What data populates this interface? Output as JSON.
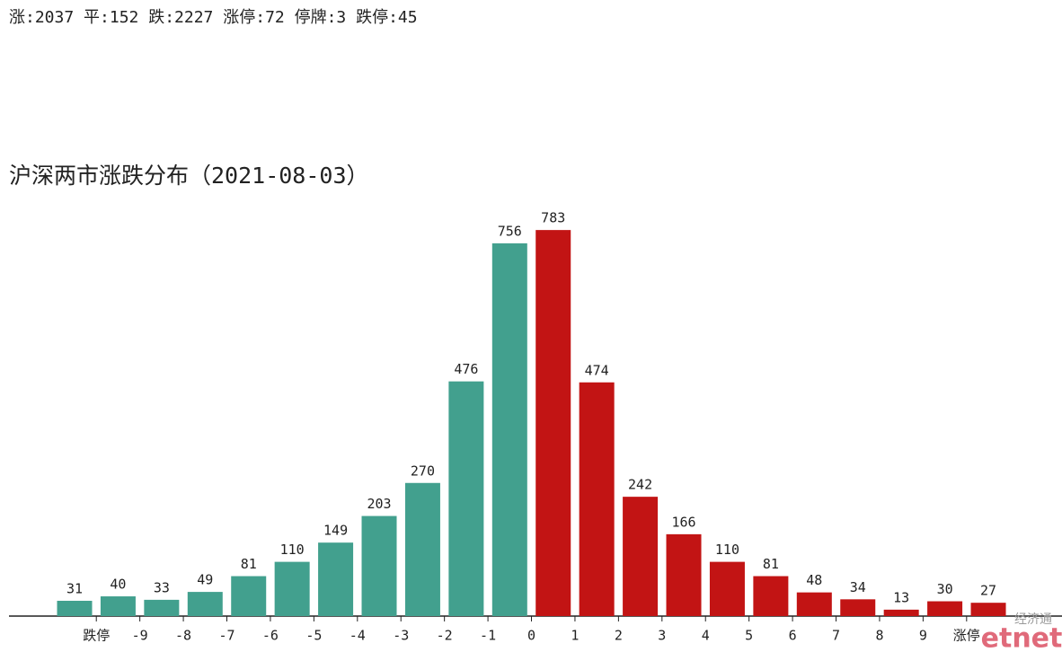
{
  "header": "涨:2037 平:152 跌:2227 涨停:72 停牌:3 跌停:45",
  "watermark": {
    "name_cn": "经济通",
    "name_en": "etnet"
  },
  "chart_data": {
    "type": "histogram",
    "title": "沪深两市涨跌分布（2021-08-03）",
    "bins": [
      null,
      "跌停",
      "-9",
      "-8",
      "-7",
      "-6",
      "-5",
      "-4",
      "-3",
      "-2",
      "-1",
      "0",
      "1",
      "2",
      "3",
      "4",
      "5",
      "6",
      "7",
      "8",
      "9",
      "涨停",
      null
    ],
    "values": [
      31,
      40,
      33,
      49,
      81,
      110,
      149,
      203,
      270,
      476,
      756,
      783,
      474,
      242,
      166,
      110,
      81,
      48,
      34,
      13,
      30,
      27
    ],
    "colors": [
      "#42a08e",
      "#42a08e",
      "#42a08e",
      "#42a08e",
      "#42a08e",
      "#42a08e",
      "#42a08e",
      "#42a08e",
      "#42a08e",
      "#42a08e",
      "#42a08e",
      "#c21414",
      "#c21414",
      "#c21414",
      "#c21414",
      "#c21414",
      "#c21414",
      "#c21414",
      "#c21414",
      "#c21414",
      "#c21414",
      "#c21414"
    ]
  }
}
